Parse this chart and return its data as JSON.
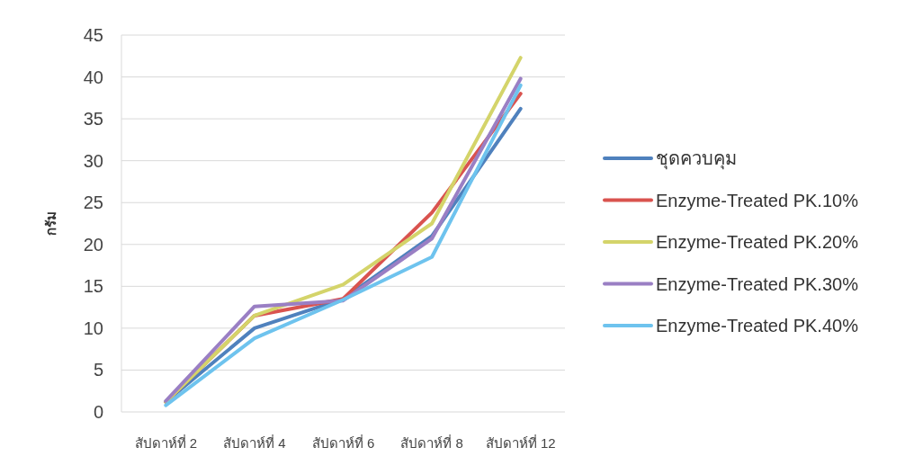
{
  "chart_data": {
    "type": "line",
    "ylabel": "กรัม",
    "categories": [
      "สัปดาห์ที่ 2",
      "สัปดาห์ที่ 4",
      "สัปดาห์ที่ 6",
      "สัปดาห์ที่ 8",
      "สัปดาห์ที่ 12"
    ],
    "series": [
      {
        "name": "ชุดควบคุม",
        "color": "#4f81bd",
        "values": [
          1.2,
          10,
          13.5,
          21,
          36.2
        ]
      },
      {
        "name": "Enzyme-Treated PK.10%",
        "color": "#d9534f",
        "values": [
          1.2,
          11.5,
          13.5,
          23.8,
          38
        ]
      },
      {
        "name": "Enzyme-Treated PK.20%",
        "color": "#d4d46a",
        "values": [
          1.2,
          11.5,
          15.2,
          22.5,
          42.3
        ]
      },
      {
        "name": "Enzyme-Treated PK.30%",
        "color": "#9a7fc4",
        "values": [
          1.3,
          12.6,
          13.3,
          20.7,
          39.8
        ]
      },
      {
        "name": "Enzyme-Treated PK.40%",
        "color": "#6ec3ee",
        "values": [
          0.8,
          8.8,
          13.4,
          18.5,
          39
        ]
      }
    ],
    "ylim": [
      0,
      45
    ],
    "yticks": [
      0,
      5,
      10,
      15,
      20,
      25,
      30,
      35,
      40,
      45
    ],
    "grid": "y",
    "legend": "right",
    "marker": "none",
    "line_style": "solid"
  }
}
